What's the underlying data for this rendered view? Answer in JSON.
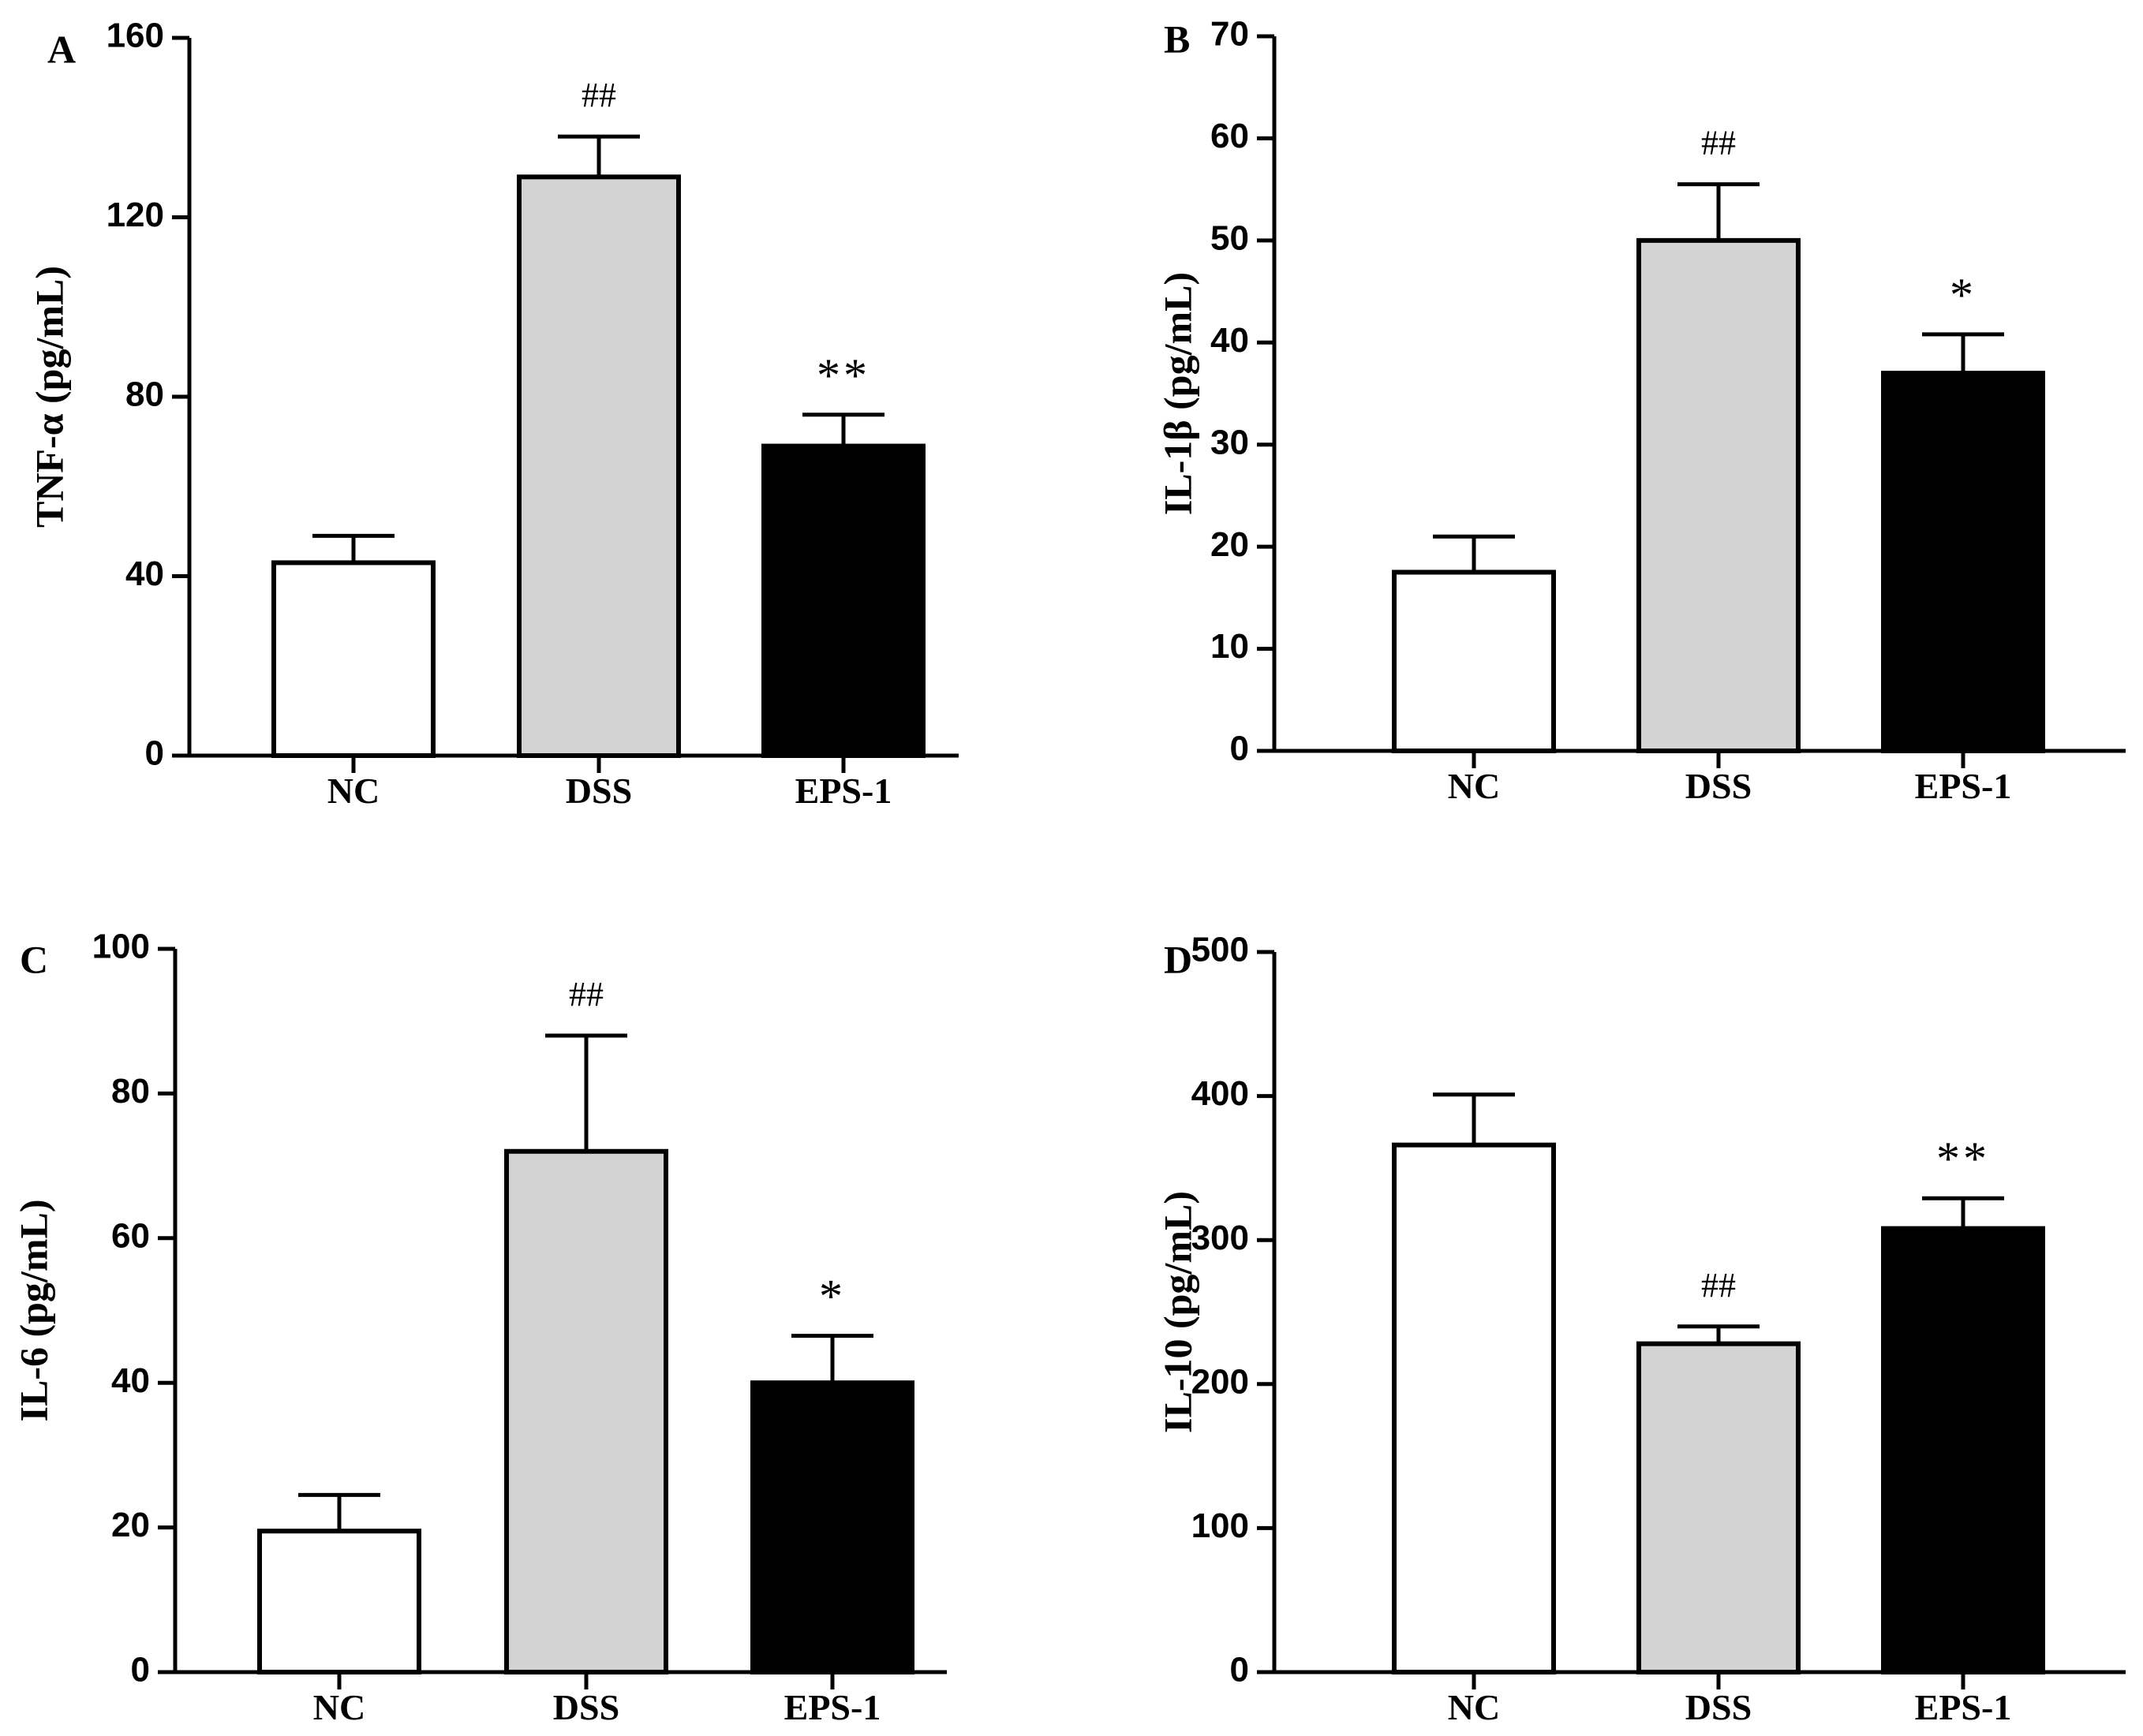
{
  "chart_data": [
    {
      "panel": "A",
      "type": "bar",
      "title": "",
      "xlabel": "",
      "ylabel": "TNF-α (pg/mL)",
      "ylim": [
        0,
        160
      ],
      "yticks": [
        "0",
        "40",
        "80",
        "120",
        "160"
      ],
      "categories": [
        "NC",
        "DSS",
        "EPS-1"
      ],
      "values": [
        43,
        129,
        69
      ],
      "errors": [
        6,
        9,
        7
      ],
      "fills": [
        "#ffffff",
        "#d3d3d3",
        "#000000"
      ],
      "significance": [
        "",
        "##",
        "**"
      ]
    },
    {
      "panel": "B",
      "type": "bar",
      "title": "",
      "xlabel": "",
      "ylabel": "IL-1β (pg/mL)",
      "ylim": [
        0,
        70
      ],
      "yticks": [
        "0",
        "10",
        "20",
        "30",
        "40",
        "50",
        "60",
        "70"
      ],
      "categories": [
        "NC",
        "DSS",
        "EPS-1"
      ],
      "values": [
        17.5,
        50,
        37
      ],
      "errors": [
        3.5,
        5.5,
        3.8
      ],
      "fills": [
        "#ffffff",
        "#d3d3d3",
        "#000000"
      ],
      "significance": [
        "",
        "##",
        "*"
      ]
    },
    {
      "panel": "C",
      "type": "bar",
      "title": "",
      "xlabel": "",
      "ylabel": "IL-6 (pg/mL)",
      "ylim": [
        0,
        100
      ],
      "yticks": [
        "0",
        "20",
        "40",
        "60",
        "80",
        "100"
      ],
      "categories": [
        "NC",
        "DSS",
        "EPS-1"
      ],
      "values": [
        19.5,
        72,
        40
      ],
      "errors": [
        5,
        16,
        6.5
      ],
      "fills": [
        "#ffffff",
        "#d3d3d3",
        "#000000"
      ],
      "significance": [
        "",
        "##",
        "*"
      ]
    },
    {
      "panel": "D",
      "type": "bar",
      "title": "",
      "xlabel": "",
      "ylabel": "IL-10 (pg/mL)",
      "ylim": [
        0,
        500
      ],
      "yticks": [
        "0",
        "100",
        "200",
        "300",
        "400",
        "500"
      ],
      "categories": [
        "NC",
        "DSS",
        "EPS-1"
      ],
      "values": [
        366,
        228,
        308
      ],
      "errors": [
        35,
        12,
        21
      ],
      "fills": [
        "#ffffff",
        "#d3d3d3",
        "#000000"
      ],
      "significance": [
        "",
        "##",
        "**"
      ]
    }
  ]
}
